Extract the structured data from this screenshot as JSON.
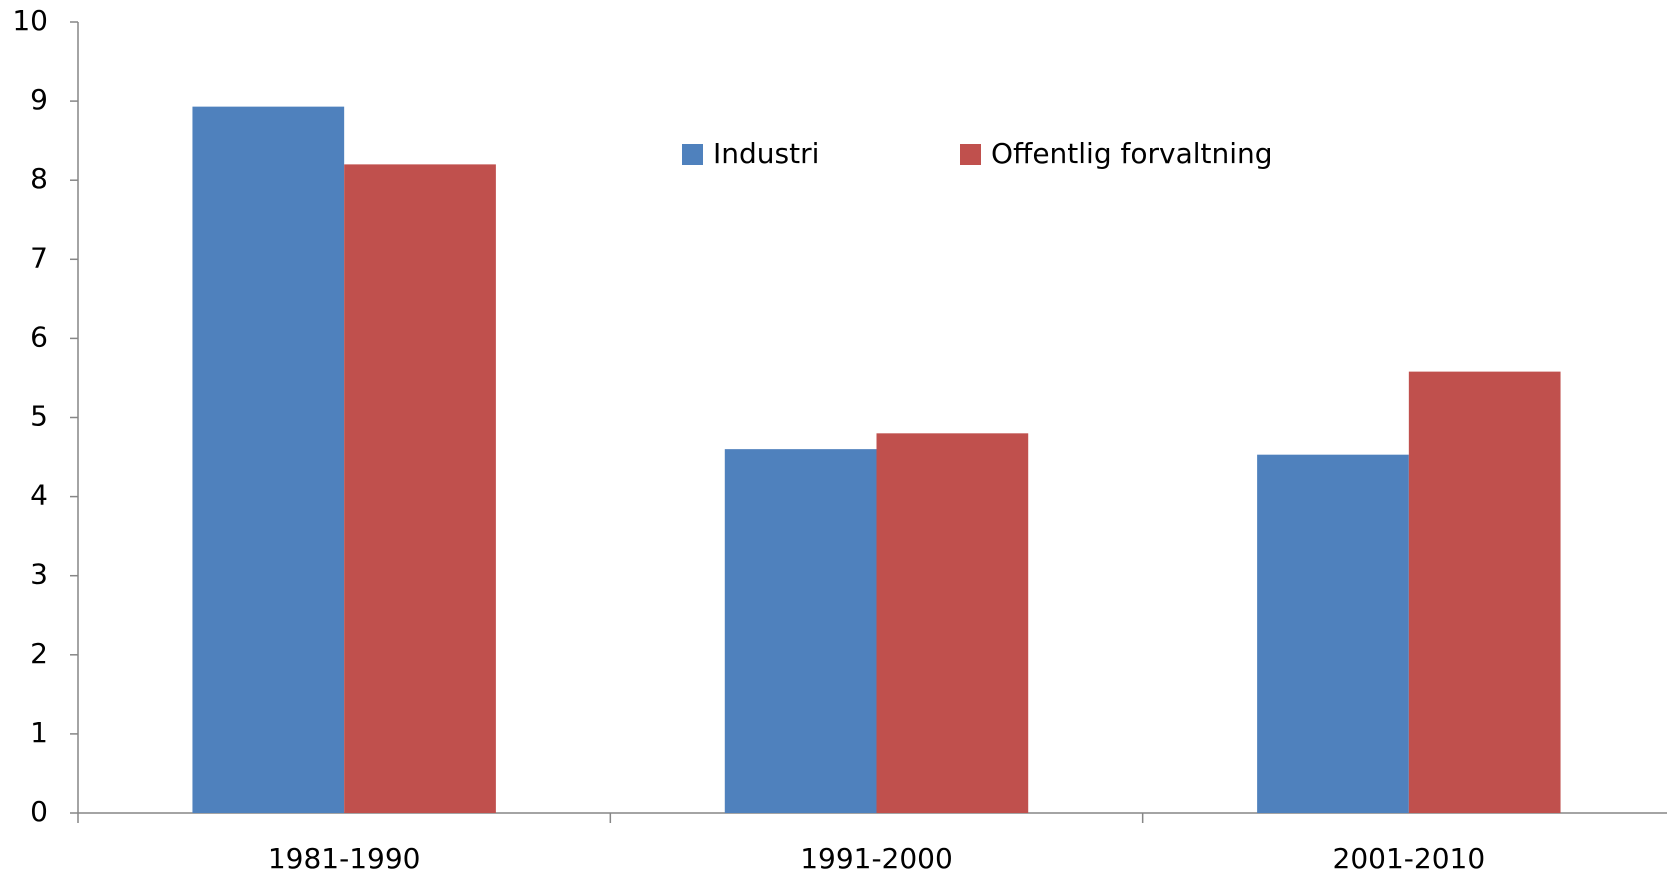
{
  "chart_data": {
    "type": "bar",
    "categories": [
      "1981-1990",
      "1991-2000",
      "2001-2010"
    ],
    "series": [
      {
        "name": "Industri",
        "color": "#4f81bd",
        "values": [
          8.93,
          4.6,
          4.53
        ]
      },
      {
        "name": "Offentlig forvaltning",
        "color": "#c0504d",
        "values": [
          8.2,
          4.8,
          5.58
        ]
      }
    ],
    "ylim": [
      0,
      10
    ],
    "yticks": [
      0,
      1,
      2,
      3,
      4,
      5,
      6,
      7,
      8,
      9,
      10
    ],
    "grid": false,
    "legend": "top"
  }
}
